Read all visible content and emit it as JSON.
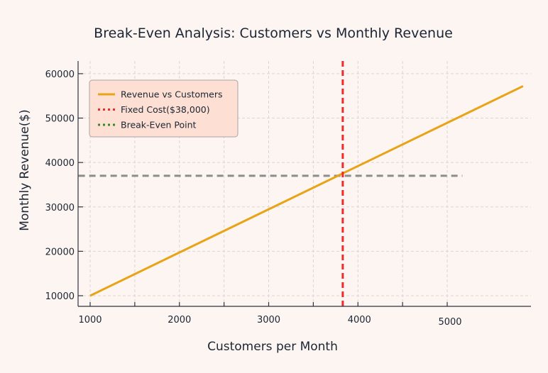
{
  "chart_data": {
    "type": "line",
    "title": "Break-Even Analysis: Customers vs Monthly Revenue",
    "xlabel": "Customers per Month",
    "ylabel": "Monthly Revenue($)",
    "xlim": [
      865,
      5950
    ],
    "ylim": [
      7500,
      63000
    ],
    "xticks": [
      1000,
      2000,
      3000,
      4000,
      5000
    ],
    "xtick_labels": [
      "1000",
      "2000",
      "3000",
      "4000",
      "5000"
    ],
    "xminor_ticks": [
      1500,
      2500,
      3500,
      4500
    ],
    "yticks": [
      10000,
      20000,
      30000,
      40000,
      50000,
      60000
    ],
    "ytick_labels": [
      "10000",
      "20000",
      "30000",
      "40000",
      "50000",
      "60000"
    ],
    "grid": true,
    "legend_position": "top-left",
    "series": [
      {
        "name": "Revenue vs Customers",
        "style": "solid",
        "color": "#e8a317",
        "x": [
          1000,
          5850
        ],
        "y": [
          10000,
          57200
        ]
      }
    ],
    "vlines": [
      {
        "name": "Fixed Cost($38,000)",
        "style": "dashed",
        "color": "#ee2a2a",
        "x": 3830
      }
    ],
    "hlines": [
      {
        "name": "Break-Even Point",
        "style": "dashed",
        "color": "#8c8c8c",
        "legend_color": "#2e8b2e",
        "y": 37000,
        "xmin": 870,
        "xmax": 5170
      }
    ],
    "legend": [
      {
        "label": "Revenue vs Customers",
        "color": "#e8a317",
        "style": "solid"
      },
      {
        "label": "Fixed Cost($38,000)",
        "color": "#ee2a2a",
        "style": "dotted"
      },
      {
        "label": "Break-Even Point",
        "color": "#2e8b2e",
        "style": "dotted"
      }
    ]
  },
  "colors": {
    "background": "#fdf5f2",
    "legend_bg": "#fde0d3",
    "axis": "#2d3440",
    "grid": "#dcd5d3"
  }
}
